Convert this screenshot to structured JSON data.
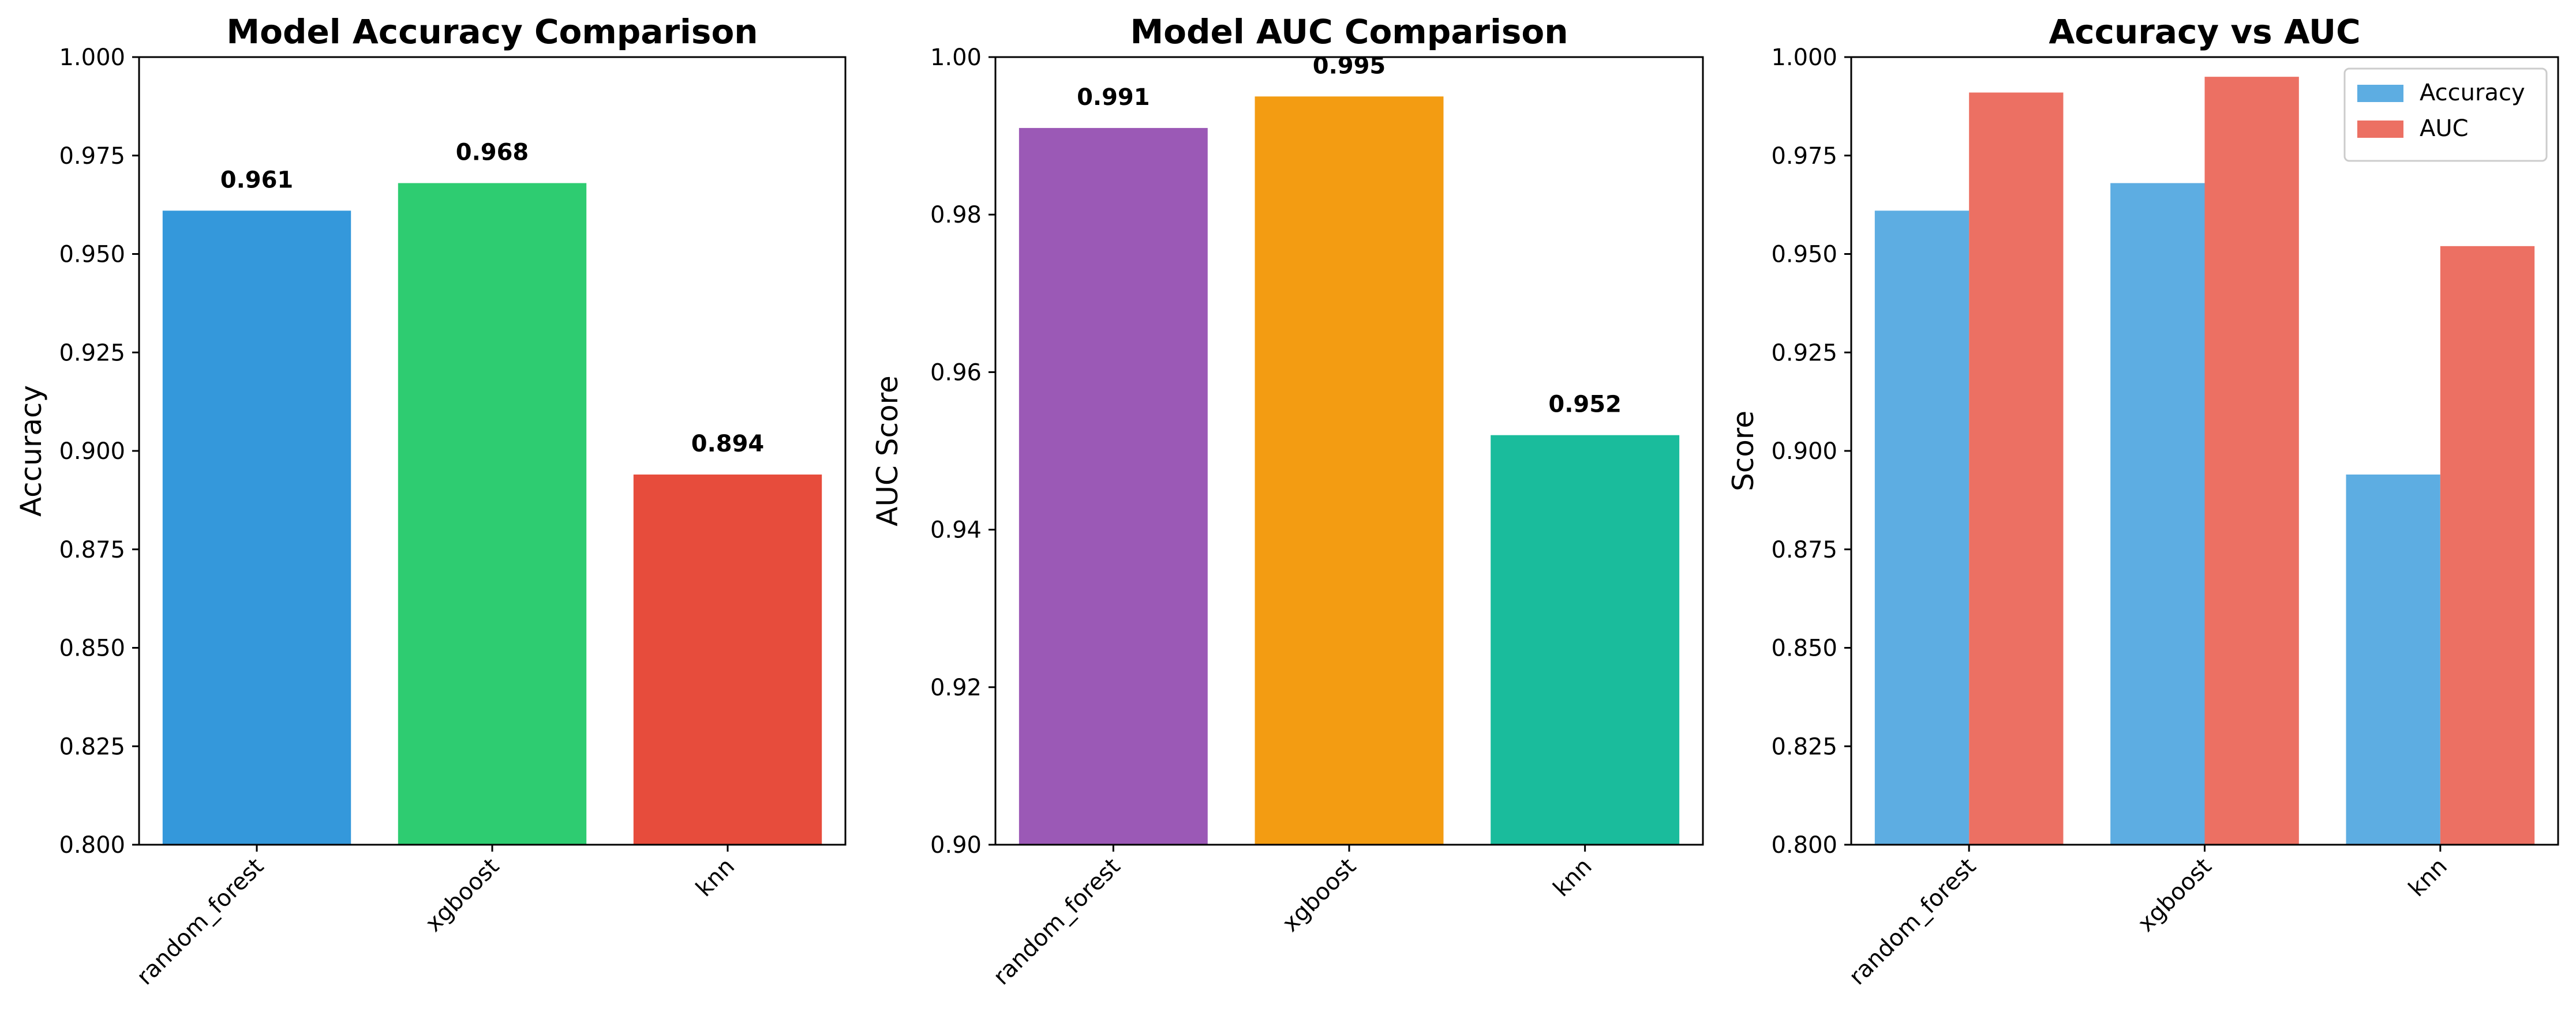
{
  "chart_data": [
    {
      "type": "bar",
      "title": "Model Accuracy Comparison",
      "xlabel": "",
      "ylabel": "Accuracy",
      "categories": [
        "random_forest",
        "xgboost",
        "knn"
      ],
      "values": [
        0.961,
        0.968,
        0.894
      ],
      "value_labels": [
        "0.961",
        "0.968",
        "0.894"
      ],
      "colors": [
        "#3498db",
        "#2ecc71",
        "#e74c3c"
      ],
      "ylim": [
        0.8,
        1.0
      ],
      "yticks": [
        0.8,
        0.825,
        0.85,
        0.875,
        0.9,
        0.925,
        0.95,
        0.975,
        1.0
      ],
      "ytick_labels": [
        "0.800",
        "0.825",
        "0.850",
        "0.875",
        "0.900",
        "0.925",
        "0.950",
        "0.975",
        "1.000"
      ],
      "grid": false
    },
    {
      "type": "bar",
      "title": "Model AUC Comparison",
      "xlabel": "",
      "ylabel": "AUC Score",
      "categories": [
        "random_forest",
        "xgboost",
        "knn"
      ],
      "values": [
        0.991,
        0.995,
        0.952
      ],
      "value_labels": [
        "0.991",
        "0.995",
        "0.952"
      ],
      "colors": [
        "#9b59b6",
        "#f39c12",
        "#1abc9c"
      ],
      "ylim": [
        0.9,
        1.0
      ],
      "yticks": [
        0.9,
        0.92,
        0.94,
        0.96,
        0.98,
        1.0
      ],
      "ytick_labels": [
        "0.90",
        "0.92",
        "0.94",
        "0.96",
        "0.98",
        "1.00"
      ],
      "grid": false
    },
    {
      "type": "bar",
      "title": "Accuracy vs AUC",
      "xlabel": "",
      "ylabel": "Score",
      "categories": [
        "random_forest",
        "xgboost",
        "knn"
      ],
      "series": [
        {
          "name": "Accuracy",
          "values": [
            0.961,
            0.968,
            0.894
          ],
          "color": "#5dade2"
        },
        {
          "name": "AUC",
          "values": [
            0.991,
            0.995,
            0.952
          ],
          "color": "#ec7063"
        }
      ],
      "ylim": [
        0.8,
        1.0
      ],
      "yticks": [
        0.8,
        0.825,
        0.85,
        0.875,
        0.9,
        0.925,
        0.95,
        0.975,
        1.0
      ],
      "ytick_labels": [
        "0.800",
        "0.825",
        "0.850",
        "0.875",
        "0.900",
        "0.925",
        "0.950",
        "0.975",
        "1.000"
      ],
      "legend": "top-right",
      "grid": false
    }
  ]
}
